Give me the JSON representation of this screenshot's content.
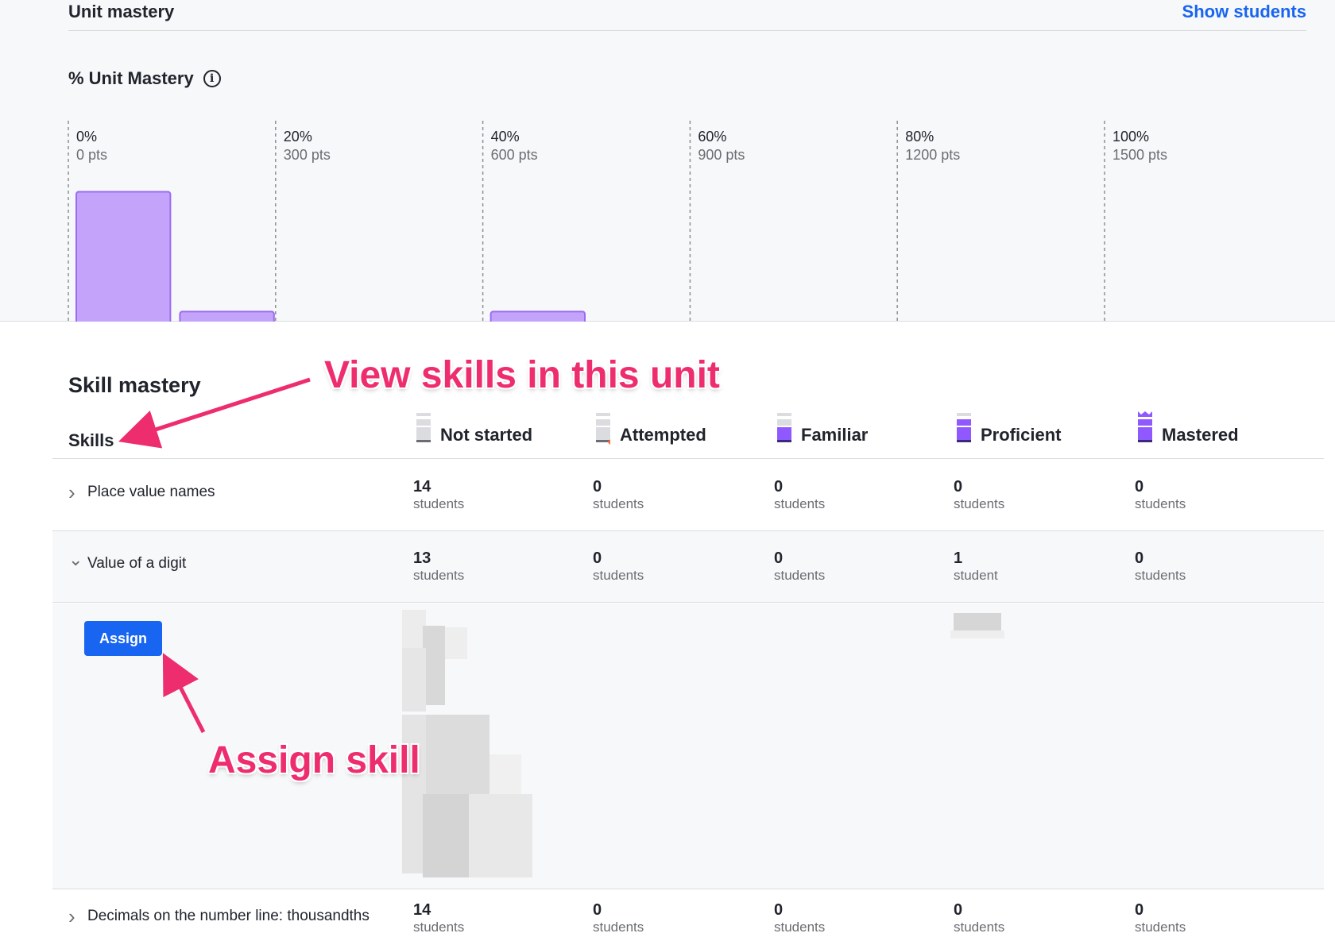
{
  "header": {
    "title": "Unit mastery",
    "show_students": "Show students"
  },
  "chart": {
    "title": "% Unit Mastery",
    "info_icon": "info-icon",
    "ticks": [
      {
        "pct": "0%",
        "pts": "0 pts"
      },
      {
        "pct": "20%",
        "pts": "300 pts"
      },
      {
        "pct": "40%",
        "pts": "600 pts"
      },
      {
        "pct": "60%",
        "pts": "900 pts"
      },
      {
        "pct": "80%",
        "pts": "1200 pts"
      },
      {
        "pct": "100%",
        "pts": "1500 pts"
      }
    ],
    "bar_color": "#c4a4fb",
    "bar_border": "#9b6cf0"
  },
  "chart_data": {
    "type": "bar",
    "xlabel": "",
    "ylabel": "",
    "x_unit": "pts",
    "x_range": [
      0,
      1500
    ],
    "bins": [
      {
        "from": 0,
        "to": 150,
        "count": 13
      },
      {
        "from": 150,
        "to": 300,
        "count": 1
      },
      {
        "from": 450,
        "to": 600,
        "count": 0
      },
      {
        "from": 600,
        "to": 750,
        "count": 1
      }
    ],
    "grid": true
  },
  "skill_mastery": {
    "title": "Skill mastery",
    "skills_header": "Skills",
    "levels": [
      {
        "label": "Not started",
        "icon": "not-started-icon",
        "color": "#dadce0"
      },
      {
        "label": "Attempted",
        "icon": "attempted-icon",
        "color": "#dadce0"
      },
      {
        "label": "Familiar",
        "icon": "familiar-icon",
        "color": "#9059ff"
      },
      {
        "label": "Proficient",
        "icon": "proficient-icon",
        "color": "#9059ff"
      },
      {
        "label": "Mastered",
        "icon": "mastered-icon",
        "color": "#9059ff"
      }
    ],
    "rows": [
      {
        "name": "Place value names",
        "expanded": false,
        "cells": [
          {
            "n": "14",
            "u": "students"
          },
          {
            "n": "0",
            "u": "students"
          },
          {
            "n": "0",
            "u": "students"
          },
          {
            "n": "0",
            "u": "students"
          },
          {
            "n": "0",
            "u": "students"
          }
        ]
      },
      {
        "name": "Value of a digit",
        "expanded": true,
        "cells": [
          {
            "n": "13",
            "u": "students"
          },
          {
            "n": "0",
            "u": "students"
          },
          {
            "n": "0",
            "u": "students"
          },
          {
            "n": "1",
            "u": "student"
          },
          {
            "n": "0",
            "u": "students"
          }
        ]
      },
      {
        "name": "Decimals on the number line: thousandths",
        "expanded": false,
        "cells": [
          {
            "n": "14",
            "u": "students"
          },
          {
            "n": "0",
            "u": "students"
          },
          {
            "n": "0",
            "u": "students"
          },
          {
            "n": "0",
            "u": "students"
          },
          {
            "n": "0",
            "u": "students"
          }
        ]
      }
    ],
    "assign_label": "Assign"
  },
  "annotations": {
    "view_skills": "View skills in this unit",
    "assign_skill": "Assign skill",
    "color": "#ee2d6e"
  }
}
